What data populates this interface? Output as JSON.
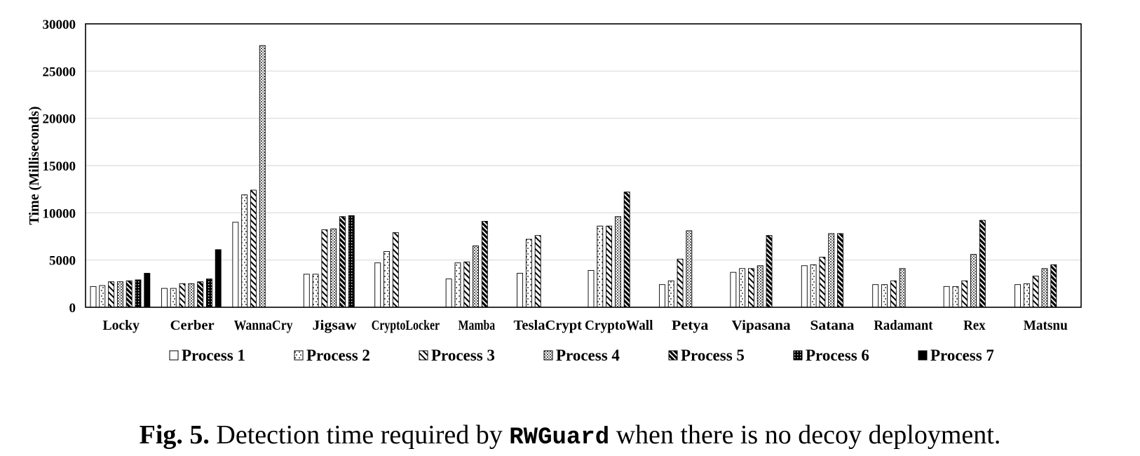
{
  "chart_data": {
    "type": "bar",
    "ylabel": "Time (Milliseconds)",
    "xlabel": "",
    "ylim": [
      0,
      30000
    ],
    "yticks": [
      0,
      5000,
      10000,
      15000,
      20000,
      25000,
      30000
    ],
    "ytick_labels": [
      "0",
      "5000",
      "10000",
      "15000",
      "20000",
      "25000",
      "30000"
    ],
    "grid": true,
    "legend_position": "bottom",
    "categories": [
      "Locky",
      "Cerber",
      "WannaCry",
      "Jigsaw",
      "CryptoLocker",
      "Mamba",
      "TeslaCrypt",
      "CryptoWall",
      "Petya",
      "Vipasana",
      "Satana",
      "Radamant",
      "Rex",
      "Matsnu"
    ],
    "series": [
      {
        "name": "Process 1",
        "values": [
          2200,
          2000,
          9000,
          3500,
          4700,
          3000,
          3600,
          3900,
          2400,
          3700,
          4400,
          2400,
          2200,
          2400
        ]
      },
      {
        "name": "Process 2",
        "values": [
          2300,
          2000,
          11900,
          3500,
          5900,
          4700,
          7200,
          8600,
          2800,
          4100,
          4500,
          2400,
          2200,
          2500
        ]
      },
      {
        "name": "Process 3",
        "values": [
          2700,
          2500,
          12400,
          8200,
          7900,
          4800,
          7600,
          8600,
          5100,
          4100,
          5300,
          2800,
          2800,
          3300
        ]
      },
      {
        "name": "Process 4",
        "values": [
          2700,
          2500,
          27700,
          8300,
          null,
          6500,
          null,
          9600,
          8100,
          4400,
          7800,
          4100,
          5600,
          4100
        ]
      },
      {
        "name": "Process 5",
        "values": [
          2800,
          2700,
          null,
          9600,
          null,
          9100,
          null,
          12200,
          null,
          7600,
          7800,
          null,
          9200,
          4500
        ]
      },
      {
        "name": "Process 6",
        "values": [
          2900,
          3000,
          null,
          9700,
          null,
          null,
          null,
          null,
          null,
          null,
          null,
          null,
          null,
          null
        ]
      },
      {
        "name": "Process 7",
        "values": [
          3600,
          6100,
          null,
          null,
          null,
          null,
          null,
          null,
          null,
          null,
          null,
          null,
          null,
          null
        ]
      }
    ]
  },
  "caption": {
    "label": "Fig. 5.",
    "text_before": "Detection time required by",
    "tool": "RWGuard",
    "text_after": "when there is no decoy deployment."
  }
}
